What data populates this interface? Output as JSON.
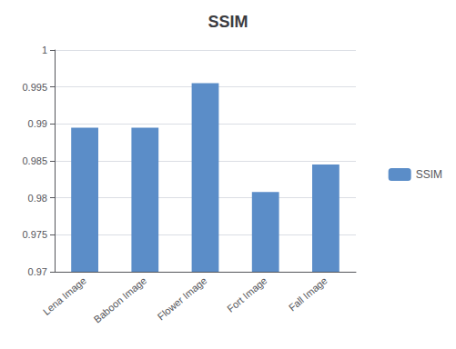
{
  "chart_data": {
    "type": "bar",
    "title": "SSIM",
    "categories": [
      "Lena Image",
      "Baboon Image",
      "Flower Image",
      "Fort Image",
      "Fall Image"
    ],
    "series": [
      {
        "name": "SSIM",
        "color": "#5B8DC8",
        "values": [
          0.9895,
          0.9895,
          0.9955,
          0.9808,
          0.9845
        ]
      }
    ],
    "ylim": [
      0.97,
      1.0
    ],
    "yticks": [
      0.97,
      0.975,
      0.98,
      0.985,
      0.99,
      0.995,
      1
    ],
    "grid": true,
    "legend": "right"
  }
}
